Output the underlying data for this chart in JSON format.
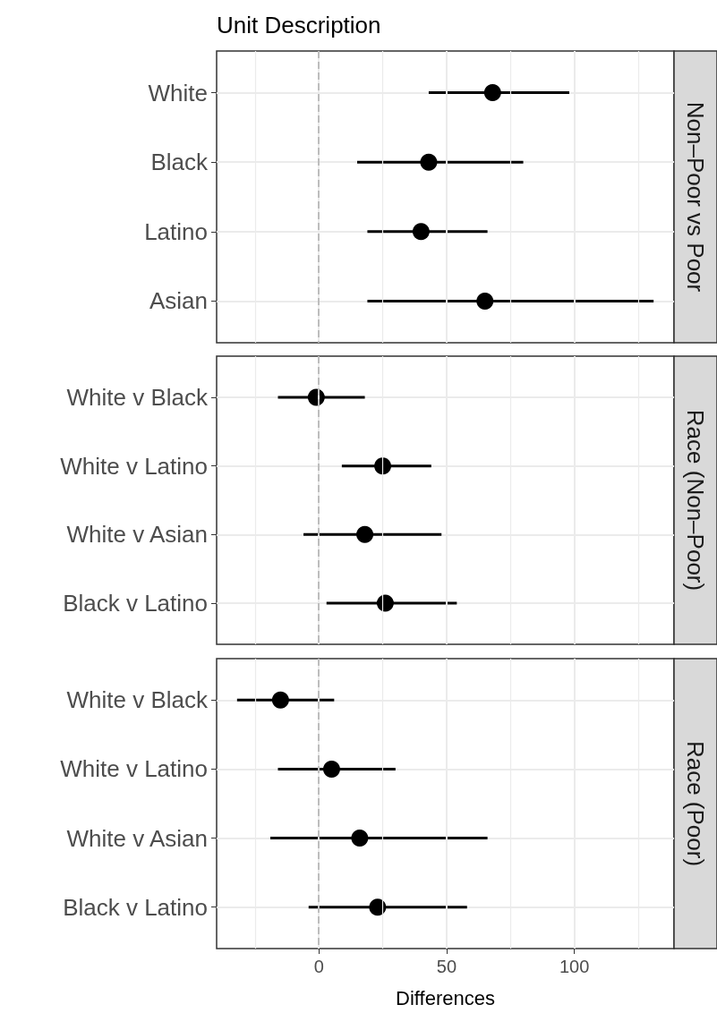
{
  "chart_data": [
    {
      "type": "scatter",
      "orientation": "horizontal",
      "title": "Unit Description",
      "subtitle": "Non–Poor vs Poor",
      "categories": [
        "White",
        "Black",
        "Latino",
        "Asian"
      ],
      "values": [
        68,
        43,
        40,
        65
      ],
      "errors": [
        [
          43,
          98
        ],
        [
          15,
          80
        ],
        [
          19,
          66
        ],
        [
          19,
          131
        ]
      ],
      "color": "#000000",
      "marker": "circle",
      "xlim": [
        -40,
        139
      ],
      "xticks": [
        {
          "value": -25,
          "label": null
        },
        0,
        {
          "value": 25,
          "label": null
        },
        50,
        {
          "value": 75,
          "label": null
        },
        100,
        {
          "value": 125,
          "label": null
        }
      ],
      "grid": true,
      "tick_labels": "y",
      "ref_lines": [
        {
          "axis": "x",
          "value": 0,
          "color": "#bdbdbd",
          "line_style": "dashed"
        }
      ]
    },
    {
      "type": "scatter",
      "orientation": "horizontal",
      "subtitle": "Race (Non–Poor)",
      "categories": [
        "White v Black",
        "White v Latino",
        "White v Asian",
        "Black v Latino"
      ],
      "values": [
        -1,
        25,
        18,
        26
      ],
      "errors": [
        [
          -16,
          18
        ],
        [
          9,
          44
        ],
        [
          -6,
          48
        ],
        [
          3,
          54
        ]
      ],
      "color": "#000000",
      "marker": "circle",
      "xlim": [
        -40,
        139
      ],
      "xticks": [
        {
          "value": -25,
          "label": null
        },
        0,
        {
          "value": 25,
          "label": null
        },
        50,
        {
          "value": 75,
          "label": null
        },
        100,
        {
          "value": 125,
          "label": null
        }
      ],
      "grid": true,
      "tick_labels": "y",
      "ref_lines": [
        {
          "axis": "x",
          "value": 0,
          "color": "#bdbdbd",
          "line_style": "dashed"
        }
      ]
    },
    {
      "type": "scatter",
      "orientation": "horizontal",
      "subtitle": "Race (Poor)",
      "xlabel": "Differences",
      "categories": [
        "White v Black",
        "White v Latino",
        "White v Asian",
        "Black v Latino"
      ],
      "values": [
        -15,
        5,
        16,
        23
      ],
      "errors": [
        [
          -32,
          6
        ],
        [
          -16,
          30
        ],
        [
          -19,
          66
        ],
        [
          -4,
          58
        ]
      ],
      "color": "#000000",
      "marker": "circle",
      "xlim": [
        -40,
        139
      ],
      "xticks": [
        {
          "value": -25,
          "label": null
        },
        0,
        {
          "value": 25,
          "label": null
        },
        50,
        {
          "value": 75,
          "label": null
        },
        100,
        {
          "value": 125,
          "label": null
        }
      ],
      "grid": true,
      "ref_lines": [
        {
          "axis": "x",
          "value": 0,
          "color": "#bdbdbd",
          "line_style": "dashed"
        }
      ]
    }
  ]
}
